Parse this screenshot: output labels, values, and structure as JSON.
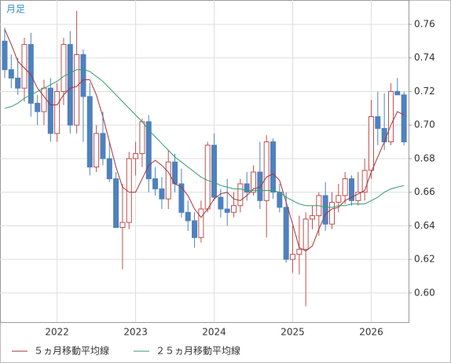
{
  "chart_data": {
    "type": "candlestick",
    "label": "月足",
    "categories": [
      null,
      null,
      null,
      null,
      null,
      null,
      null,
      null,
      "2022",
      null,
      null,
      null,
      null,
      null,
      null,
      null,
      null,
      null,
      null,
      null,
      "2023",
      null,
      null,
      null,
      null,
      null,
      null,
      null,
      null,
      null,
      null,
      null,
      "2024",
      null,
      null,
      null,
      null,
      null,
      null,
      null,
      null,
      null,
      null,
      null,
      "2025",
      null,
      null,
      null,
      null,
      null,
      null,
      null,
      null,
      null,
      null,
      null,
      "2026",
      null,
      null,
      null,
      null,
      null
    ],
    "open": [
      0.75,
      0.733,
      0.728,
      0.722,
      0.748,
      0.713,
      0.708,
      0.722,
      0.695,
      0.72,
      0.748,
      0.7,
      0.742,
      0.717,
      0.675,
      0.695,
      0.68,
      0.668,
      0.639,
      0.642,
      0.68,
      0.683,
      0.702,
      0.668,
      0.662,
      0.656,
      0.678,
      0.665,
      0.648,
      0.643,
      0.633,
      0.65,
      0.688,
      0.657,
      0.65,
      0.648,
      0.652,
      0.665,
      0.66,
      0.672,
      0.655,
      0.69,
      0.66,
      0.651,
      0.62,
      0.623,
      0.626,
      0.644,
      0.646,
      0.658,
      0.641,
      0.654,
      0.658,
      0.668,
      0.655,
      0.66,
      0.673,
      0.705,
      0.698,
      0.69,
      0.72,
      0.718
    ],
    "high": [
      0.758,
      0.742,
      0.74,
      0.752,
      0.755,
      0.718,
      0.727,
      0.728,
      0.725,
      0.752,
      0.756,
      0.768,
      0.745,
      0.725,
      0.7,
      0.708,
      0.69,
      0.672,
      0.665,
      0.684,
      0.69,
      0.704,
      0.706,
      0.675,
      0.669,
      0.685,
      0.683,
      0.674,
      0.655,
      0.648,
      0.655,
      0.69,
      0.695,
      0.662,
      0.668,
      0.66,
      0.668,
      0.672,
      0.676,
      0.69,
      0.694,
      0.692,
      0.665,
      0.66,
      0.64,
      0.646,
      0.648,
      0.652,
      0.66,
      0.666,
      0.66,
      0.665,
      0.672,
      0.67,
      0.672,
      0.68,
      0.715,
      0.72,
      0.719,
      0.725,
      0.728,
      0.72
    ],
    "low": [
      0.728,
      0.722,
      0.718,
      0.714,
      0.705,
      0.7,
      0.7,
      0.69,
      0.69,
      0.712,
      0.695,
      0.695,
      0.69,
      0.67,
      0.672,
      0.676,
      0.666,
      0.64,
      0.614,
      0.638,
      0.67,
      0.675,
      0.66,
      0.658,
      0.65,
      0.65,
      0.66,
      0.645,
      0.637,
      0.627,
      0.63,
      0.648,
      0.655,
      0.645,
      0.64,
      0.645,
      0.648,
      0.655,
      0.658,
      0.65,
      0.633,
      0.656,
      0.648,
      0.618,
      0.612,
      0.611,
      0.592,
      0.638,
      0.634,
      0.637,
      0.638,
      0.648,
      0.653,
      0.652,
      0.652,
      0.655,
      0.668,
      0.688,
      0.685,
      0.688,
      0.718,
      0.688
    ],
    "close": [
      0.733,
      0.728,
      0.722,
      0.748,
      0.713,
      0.708,
      0.722,
      0.695,
      0.72,
      0.748,
      0.7,
      0.742,
      0.717,
      0.675,
      0.695,
      0.68,
      0.668,
      0.639,
      0.642,
      0.68,
      0.683,
      0.702,
      0.668,
      0.662,
      0.656,
      0.678,
      0.665,
      0.648,
      0.643,
      0.633,
      0.65,
      0.688,
      0.657,
      0.65,
      0.648,
      0.652,
      0.665,
      0.66,
      0.672,
      0.655,
      0.69,
      0.66,
      0.651,
      0.62,
      0.623,
      0.626,
      0.644,
      0.646,
      0.658,
      0.641,
      0.654,
      0.658,
      0.668,
      0.655,
      0.66,
      0.673,
      0.705,
      0.698,
      0.69,
      0.72,
      0.718,
      0.69
    ],
    "up_color": "#c0504d",
    "down_color": "#4f81bd",
    "lines": [
      {
        "name": "５ヵ月移動平均線",
        "color": "#a83232",
        "values": [
          0.757,
          0.748,
          0.738,
          0.734,
          0.73,
          0.722,
          0.717,
          0.712,
          0.712,
          0.718,
          0.722,
          0.723,
          0.727,
          0.727,
          0.718,
          0.705,
          0.69,
          0.675,
          0.663,
          0.66,
          0.66,
          0.668,
          0.676,
          0.679,
          0.676,
          0.672,
          0.665,
          0.663,
          0.658,
          0.65,
          0.645,
          0.65,
          0.656,
          0.659,
          0.66,
          0.656,
          0.655,
          0.658,
          0.662,
          0.663,
          0.669,
          0.671,
          0.667,
          0.654,
          0.641,
          0.627,
          0.625,
          0.628,
          0.638,
          0.647,
          0.65,
          0.651,
          0.655,
          0.657,
          0.659,
          0.661,
          0.672,
          0.681,
          0.69,
          0.7,
          0.708,
          0.706
        ]
      },
      {
        "name": "２５ヵ月移動平均線",
        "color": "#2e9e6e",
        "values": [
          0.71,
          0.711,
          0.713,
          0.716,
          0.718,
          0.72,
          0.722,
          0.724,
          0.726,
          0.729,
          0.731,
          0.733,
          0.733,
          0.732,
          0.729,
          0.726,
          0.722,
          0.718,
          0.714,
          0.71,
          0.706,
          0.702,
          0.697,
          0.693,
          0.689,
          0.685,
          0.681,
          0.678,
          0.675,
          0.672,
          0.669,
          0.667,
          0.666,
          0.664,
          0.663,
          0.662,
          0.662,
          0.661,
          0.661,
          0.661,
          0.661,
          0.661,
          0.66,
          0.657,
          0.655,
          0.653,
          0.652,
          0.652,
          0.652,
          0.651,
          0.651,
          0.652,
          0.652,
          0.653,
          0.653,
          0.653,
          0.655,
          0.657,
          0.66,
          0.662,
          0.663,
          0.664
        ]
      }
    ],
    "ylim": [
      0.5826,
      0.7745
    ],
    "yticks": [
      {
        "value": 0.6,
        "label": "0.60"
      },
      0.62,
      0.64,
      0.66,
      0.68,
      {
        "value": 0.7,
        "label": "0.70"
      },
      0.72,
      0.74,
      0.76
    ],
    "grid": true
  }
}
